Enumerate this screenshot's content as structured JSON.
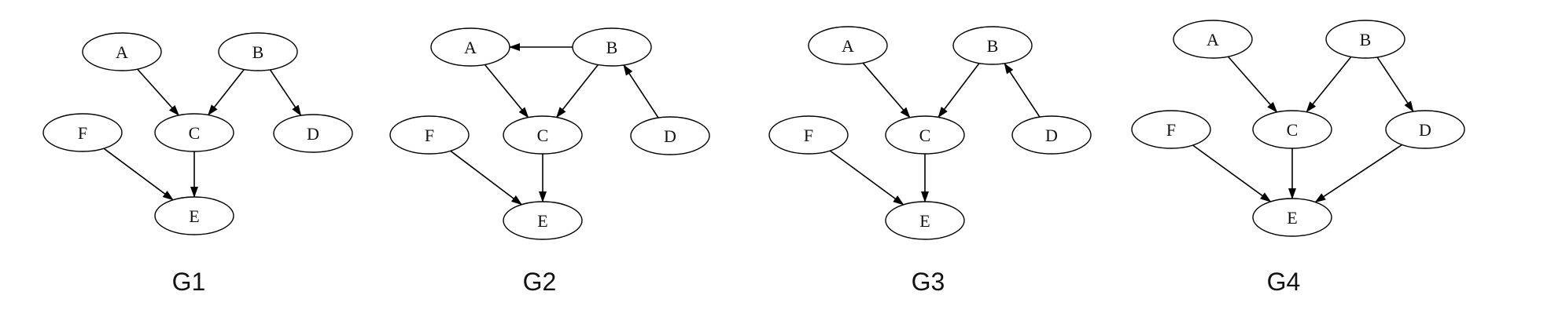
{
  "graphs": [
    {
      "caption": "G1",
      "nodes": [
        {
          "id": "A",
          "label": "A"
        },
        {
          "id": "B",
          "label": "B"
        },
        {
          "id": "C",
          "label": "C"
        },
        {
          "id": "D",
          "label": "D"
        },
        {
          "id": "E",
          "label": "E"
        },
        {
          "id": "F",
          "label": "F"
        }
      ],
      "edges": [
        {
          "from": "A",
          "to": "C"
        },
        {
          "from": "B",
          "to": "C"
        },
        {
          "from": "B",
          "to": "D"
        },
        {
          "from": "C",
          "to": "E"
        },
        {
          "from": "F",
          "to": "E"
        }
      ]
    },
    {
      "caption": "G2",
      "nodes": [
        {
          "id": "A",
          "label": "A"
        },
        {
          "id": "B",
          "label": "B"
        },
        {
          "id": "C",
          "label": "C"
        },
        {
          "id": "D",
          "label": "D"
        },
        {
          "id": "E",
          "label": "E"
        },
        {
          "id": "F",
          "label": "F"
        }
      ],
      "edges": [
        {
          "from": "B",
          "to": "A"
        },
        {
          "from": "A",
          "to": "C"
        },
        {
          "from": "B",
          "to": "C"
        },
        {
          "from": "D",
          "to": "B"
        },
        {
          "from": "C",
          "to": "E"
        },
        {
          "from": "F",
          "to": "E"
        }
      ]
    },
    {
      "caption": "G3",
      "nodes": [
        {
          "id": "A",
          "label": "A"
        },
        {
          "id": "B",
          "label": "B"
        },
        {
          "id": "C",
          "label": "C"
        },
        {
          "id": "D",
          "label": "D"
        },
        {
          "id": "E",
          "label": "E"
        },
        {
          "id": "F",
          "label": "F"
        }
      ],
      "edges": [
        {
          "from": "A",
          "to": "C"
        },
        {
          "from": "B",
          "to": "C"
        },
        {
          "from": "D",
          "to": "B"
        },
        {
          "from": "C",
          "to": "E"
        },
        {
          "from": "F",
          "to": "E"
        }
      ]
    },
    {
      "caption": "G4",
      "nodes": [
        {
          "id": "A",
          "label": "A"
        },
        {
          "id": "B",
          "label": "B"
        },
        {
          "id": "C",
          "label": "C"
        },
        {
          "id": "D",
          "label": "D"
        },
        {
          "id": "E",
          "label": "E"
        },
        {
          "id": "F",
          "label": "F"
        }
      ],
      "edges": [
        {
          "from": "A",
          "to": "C"
        },
        {
          "from": "B",
          "to": "C"
        },
        {
          "from": "B",
          "to": "D"
        },
        {
          "from": "C",
          "to": "E"
        },
        {
          "from": "D",
          "to": "E"
        },
        {
          "from": "F",
          "to": "E"
        }
      ]
    }
  ]
}
